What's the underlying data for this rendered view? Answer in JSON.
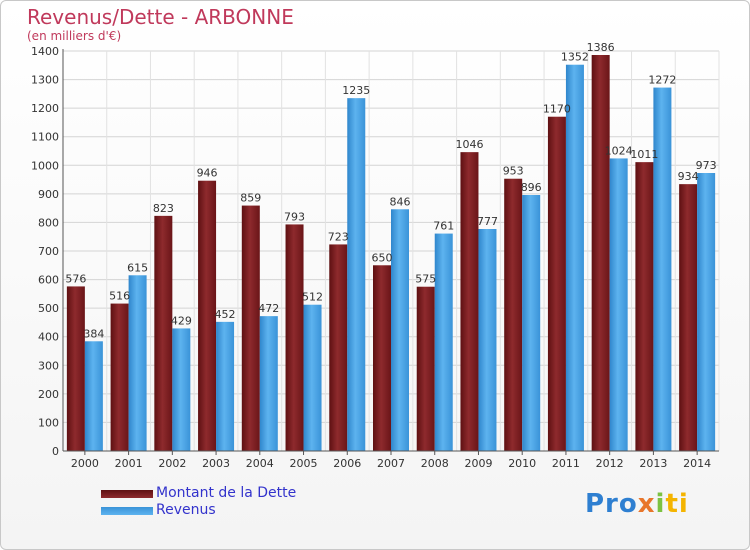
{
  "colors": {
    "debt": "#7a1f22",
    "revenue": "#4aa3e6",
    "title": "#c0395b",
    "legend_text": "#3333cc"
  },
  "chart_data": {
    "type": "bar",
    "title": "Revenus/Dette - ARBONNE",
    "subtitle": "(en milliers d'€)",
    "categories": [
      "2000",
      "2001",
      "2002",
      "2003",
      "2004",
      "2005",
      "2006",
      "2007",
      "2008",
      "2009",
      "2010",
      "2011",
      "2012",
      "2013",
      "2014"
    ],
    "series": [
      {
        "name": "Montant de la Dette",
        "values": [
          576,
          516,
          823,
          946,
          859,
          793,
          723,
          650,
          575,
          1046,
          953,
          1170,
          1386,
          1011,
          934
        ]
      },
      {
        "name": "Revenus",
        "values": [
          384,
          615,
          429,
          452,
          472,
          512,
          1235,
          846,
          761,
          777,
          896,
          1352,
          1024,
          1272,
          973
        ]
      }
    ],
    "ylim": [
      0,
      1400
    ],
    "yticks": [
      0,
      100,
      200,
      300,
      400,
      500,
      600,
      700,
      800,
      900,
      1000,
      1100,
      1200,
      1300,
      1400
    ],
    "grid": true,
    "legend_position": "bottom-left"
  },
  "brand": {
    "p1": "Pro",
    "p2": "x",
    "p3": "i",
    "p4": "ti"
  }
}
